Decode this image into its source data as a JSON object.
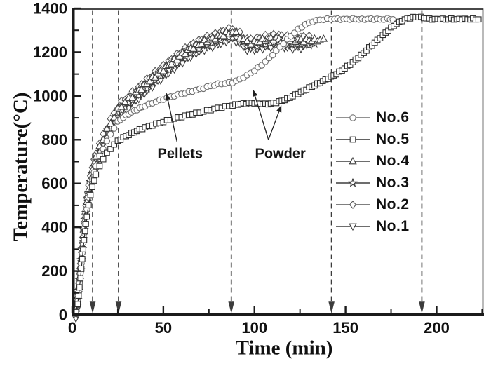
{
  "chart_data": {
    "type": "line",
    "title": "",
    "xlabel": "Time (min)",
    "ylabel": "Temperature(°C)",
    "xlim": [
      0,
      226
    ],
    "ylim": [
      0,
      1400
    ],
    "x_major_ticks": [
      0,
      50,
      100,
      150,
      200
    ],
    "x_minor_ticks": [
      25,
      75,
      125,
      175,
      225
    ],
    "y_major_ticks": [
      0,
      200,
      400,
      600,
      800,
      1000,
      1200,
      1400
    ],
    "y_minor_ticks": [
      100,
      300,
      500,
      700,
      900,
      1100,
      1300
    ],
    "grid": false,
    "legend_position": "right-middle",
    "dashed_guides_x": [
      11.2,
      25.4,
      87.3,
      142.3,
      191.9
    ],
    "marker_step": {
      "t": 2,
      "T": 55
    },
    "colors": {
      "axis": "#1b1b1b",
      "text": "#111111",
      "guide": "#3c3c3c"
    },
    "draw_order": [
      5,
      3,
      4,
      2,
      0,
      1
    ],
    "pellets_base": [
      [
        2,
        20
      ],
      [
        3,
        80
      ],
      [
        4,
        170
      ],
      [
        5,
        265
      ],
      [
        6,
        360
      ],
      [
        7,
        445
      ],
      [
        8,
        515
      ],
      [
        9,
        572
      ],
      [
        10,
        618
      ],
      [
        11,
        656
      ],
      [
        12,
        690
      ],
      [
        13,
        718
      ],
      [
        15,
        764
      ],
      [
        17,
        804
      ],
      [
        19,
        840
      ],
      [
        21,
        872
      ],
      [
        23,
        903
      ],
      [
        25,
        932
      ],
      [
        27,
        952
      ],
      [
        29,
        968
      ],
      [
        31,
        982
      ],
      [
        33,
        996
      ],
      [
        35,
        1010
      ],
      [
        38,
        1032
      ],
      [
        41,
        1055
      ],
      [
        44,
        1077
      ],
      [
        47,
        1098
      ],
      [
        50,
        1118
      ],
      [
        53,
        1138
      ],
      [
        56,
        1158
      ],
      [
        59,
        1178
      ],
      [
        62,
        1196
      ],
      [
        65,
        1212
      ],
      [
        68,
        1226
      ],
      [
        71,
        1239
      ],
      [
        74,
        1249
      ],
      [
        77,
        1258
      ],
      [
        80,
        1267
      ],
      [
        83,
        1277
      ],
      [
        86,
        1286
      ],
      [
        88,
        1289
      ],
      [
        90,
        1281
      ],
      [
        92,
        1267
      ],
      [
        94,
        1253
      ],
      [
        96,
        1243
      ],
      [
        98,
        1239
      ],
      [
        100,
        1241
      ],
      [
        103,
        1247
      ],
      [
        106,
        1253
      ],
      [
        109,
        1257
      ],
      [
        112,
        1259
      ],
      [
        115,
        1256
      ],
      [
        118,
        1252
      ],
      [
        121,
        1250
      ],
      [
        124,
        1252
      ],
      [
        127,
        1250
      ],
      [
        130,
        1252
      ],
      [
        133,
        1250
      ],
      [
        136,
        1252
      ],
      [
        138,
        1251
      ]
    ],
    "series": [
      {
        "name": "No.6",
        "marker": "circle",
        "color": "#6f6f6f",
        "jitter": 2.5,
        "phase": 0.6,
        "points": [
          [
            2,
            15
          ],
          [
            3,
            60
          ],
          [
            4,
            145
          ],
          [
            5,
            235
          ],
          [
            6,
            330
          ],
          [
            7,
            415
          ],
          [
            8,
            482
          ],
          [
            9,
            537
          ],
          [
            10,
            582
          ],
          [
            11,
            620
          ],
          [
            12,
            652
          ],
          [
            13,
            680
          ],
          [
            15,
            724
          ],
          [
            17,
            760
          ],
          [
            19,
            793
          ],
          [
            21,
            824
          ],
          [
            23,
            854
          ],
          [
            25,
            882
          ],
          [
            28,
            902
          ],
          [
            31,
            918
          ],
          [
            34,
            932
          ],
          [
            37,
            944
          ],
          [
            40,
            955
          ],
          [
            44,
            968
          ],
          [
            48,
            980
          ],
          [
            52,
            991
          ],
          [
            56,
            1001
          ],
          [
            60,
            1010
          ],
          [
            64,
            1018
          ],
          [
            68,
            1027
          ],
          [
            72,
            1036
          ],
          [
            76,
            1046
          ],
          [
            80,
            1054
          ],
          [
            84,
            1058
          ],
          [
            88,
            1062
          ],
          [
            92,
            1076
          ],
          [
            96,
            1094
          ],
          [
            100,
            1116
          ],
          [
            104,
            1142
          ],
          [
            108,
            1172
          ],
          [
            112,
            1206
          ],
          [
            116,
            1240
          ],
          [
            120,
            1274
          ],
          [
            124,
            1304
          ],
          [
            128,
            1327
          ],
          [
            132,
            1341
          ],
          [
            136,
            1348
          ],
          [
            140,
            1351
          ],
          [
            144,
            1352
          ],
          [
            149,
            1350
          ],
          [
            154,
            1352
          ],
          [
            159,
            1350
          ],
          [
            164,
            1352
          ],
          [
            169,
            1350
          ],
          [
            173,
            1352
          ],
          [
            176,
            1350
          ]
        ]
      },
      {
        "name": "No.5",
        "marker": "square",
        "color": "#2e2e2e",
        "jitter": 2.5,
        "phase": 1.9,
        "points": [
          [
            2,
            10
          ],
          [
            3,
            50
          ],
          [
            4,
            125
          ],
          [
            5,
            210
          ],
          [
            6,
            300
          ],
          [
            7,
            382
          ],
          [
            8,
            448
          ],
          [
            9,
            502
          ],
          [
            10,
            547
          ],
          [
            11,
            584
          ],
          [
            12,
            614
          ],
          [
            13,
            640
          ],
          [
            15,
            680
          ],
          [
            17,
            712
          ],
          [
            19,
            738
          ],
          [
            21,
            760
          ],
          [
            23,
            778
          ],
          [
            25,
            794
          ],
          [
            28,
            810
          ],
          [
            31,
            823
          ],
          [
            34,
            835
          ],
          [
            37,
            846
          ],
          [
            40,
            856
          ],
          [
            44,
            867
          ],
          [
            48,
            877
          ],
          [
            52,
            887
          ],
          [
            56,
            896
          ],
          [
            60,
            905
          ],
          [
            64,
            913
          ],
          [
            68,
            921
          ],
          [
            72,
            929
          ],
          [
            76,
            937
          ],
          [
            80,
            945
          ],
          [
            84,
            951
          ],
          [
            88,
            957
          ],
          [
            91,
            962
          ],
          [
            94,
            965
          ],
          [
            97,
            967
          ],
          [
            100,
            968
          ],
          [
            103,
            966
          ],
          [
            106,
            963
          ],
          [
            109,
            965
          ],
          [
            112,
            970
          ],
          [
            115,
            978
          ],
          [
            118,
            987
          ],
          [
            121,
            999
          ],
          [
            124,
            1011
          ],
          [
            127,
            1024
          ],
          [
            130,
            1037
          ],
          [
            133,
            1049
          ],
          [
            136,
            1061
          ],
          [
            139,
            1074
          ],
          [
            142,
            1087
          ],
          [
            145,
            1101
          ],
          [
            148,
            1117
          ],
          [
            151,
            1135
          ],
          [
            154,
            1154
          ],
          [
            157,
            1175
          ],
          [
            160,
            1197
          ],
          [
            163,
            1220
          ],
          [
            166,
            1243
          ],
          [
            169,
            1266
          ],
          [
            172,
            1289
          ],
          [
            175,
            1311
          ],
          [
            178,
            1330
          ],
          [
            181,
            1344
          ],
          [
            184,
            1354
          ],
          [
            187,
            1359
          ],
          [
            190,
            1361
          ],
          [
            193,
            1357
          ],
          [
            196,
            1352
          ],
          [
            199,
            1350
          ],
          [
            202,
            1352
          ],
          [
            205,
            1350
          ],
          [
            208,
            1352
          ],
          [
            211,
            1350
          ],
          [
            214,
            1352
          ],
          [
            217,
            1350
          ],
          [
            220,
            1352
          ],
          [
            223,
            1350
          ]
        ]
      },
      {
        "name": "No.4",
        "marker": "triangle",
        "color": "#3d3d3d",
        "jitter": 8,
        "phase": 2.7,
        "base": "pellets",
        "T_offset": 4,
        "t_end": 138
      },
      {
        "name": "No.3",
        "marker": "star",
        "color": "#3d3d3d",
        "jitter": 8,
        "phase": 4.1,
        "base": "pellets",
        "T_offset": -12,
        "t_end": 134
      },
      {
        "name": "No.2",
        "marker": "diamond",
        "color": "#555555",
        "jitter": 8,
        "phase": 0.2,
        "base": "pellets",
        "T_offset": 18,
        "t_end": 131
      },
      {
        "name": "No.1",
        "marker": "triangle-down",
        "color": "#3d3d3d",
        "jitter": 8,
        "phase": 5.3,
        "base": "pellets",
        "T_offset": -30,
        "t_end": 128
      }
    ],
    "annotations": [
      {
        "text": "Pellets",
        "tx": 59.2,
        "ty": 735,
        "arrows": [
          {
            "x1": 57.5,
            "y1": 790,
            "x2": 51.6,
            "y2": 1015
          }
        ]
      },
      {
        "text": "Powder",
        "tx": 114.2,
        "ty": 735,
        "arrows": [
          {
            "x1": 107.7,
            "y1": 800,
            "x2": 99.2,
            "y2": 1030
          },
          {
            "x1": 107.7,
            "y1": 800,
            "x2": 114.8,
            "y2": 958
          }
        ]
      }
    ]
  }
}
